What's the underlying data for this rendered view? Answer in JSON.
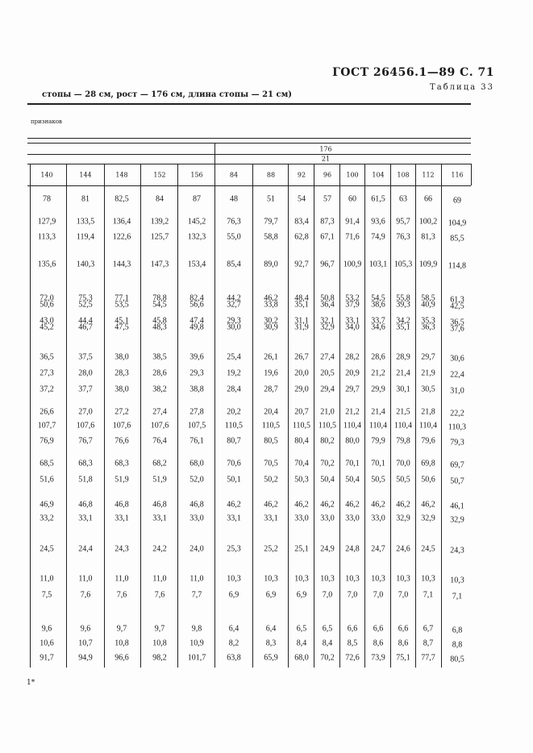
{
  "header": {
    "standard": "ГОСТ 26456.1—89 С. 71",
    "table_label": "Таблица 33"
  },
  "subtitle": "стопы — 28 см, рост — 176 см, длина стопы — 21 см)",
  "feature_label": "признаков",
  "group_header": {
    "height": "176",
    "foot_length": "21"
  },
  "columns": [
    "140",
    "144",
    "148",
    "152",
    "156",
    "84",
    "88",
    "92",
    "96",
    "100",
    "104",
    "108",
    "112",
    "116"
  ],
  "rows": [
    [
      "78",
      "81",
      "82,5",
      "84",
      "87",
      "48",
      "51",
      "54",
      "57",
      "60",
      "61,5",
      "63",
      "66",
      "69"
    ],
    [
      "127,9",
      "133,5",
      "136,4",
      "139,2",
      "145,2",
      "76,3",
      "79,7",
      "83,4",
      "87,3",
      "91,4",
      "93,6",
      "95,7",
      "100,2",
      "104,9"
    ],
    [
      "113,3",
      "119,4",
      "122,6",
      "125,7",
      "132,3",
      "55,0",
      "58,8",
      "62,8",
      "67,1",
      "71,6",
      "74,9",
      "76,3",
      "81,3",
      "85,5"
    ],
    [
      "135,6",
      "140,3",
      "144,3",
      "147,3",
      "153,4",
      "85,4",
      "89,0",
      "92,7",
      "96,7",
      "100,9",
      "103,1",
      "105,3",
      "109,9",
      "114,8"
    ],
    [
      "72,0",
      "75,3",
      "77,1",
      "78,8",
      "82,4",
      "44,2",
      "46,2",
      "48,4",
      "50,8",
      "53,2",
      "54,5",
      "55,8",
      "58,5",
      "61,3"
    ],
    [
      "50,6",
      "52,5",
      "53,5",
      "54,5",
      "56,6",
      "32,7",
      "33,8",
      "35,1",
      "36,4",
      "37,9",
      "38,6",
      "39,3",
      "40,9",
      "42,5"
    ],
    [
      "43,0",
      "44,4",
      "45,1",
      "45,8",
      "47,4",
      "29,3",
      "30,2",
      "31,1",
      "32,1",
      "33,1",
      "33,7",
      "34,2",
      "35,3",
      "36,5"
    ],
    [
      "45,2",
      "46,7",
      "47,5",
      "48,3",
      "49,8",
      "30,0",
      "30,9",
      "31,9",
      "32,9",
      "34,0",
      "34,6",
      "35,1",
      "36,3",
      "37,6"
    ],
    [
      "36,5",
      "37,5",
      "38,0",
      "38,5",
      "39,6",
      "25,4",
      "26,1",
      "26,7",
      "27,4",
      "28,2",
      "28,6",
      "28,9",
      "29,7",
      "30,6"
    ],
    [
      "27,3",
      "28,0",
      "28,3",
      "28,6",
      "29,3",
      "19,2",
      "19,6",
      "20,0",
      "20,5",
      "20,9",
      "21,2",
      "21,4",
      "21,9",
      "22,4"
    ],
    [
      "37,2",
      "37,7",
      "38,0",
      "38,2",
      "38,8",
      "28,4",
      "28,7",
      "29,0",
      "29,4",
      "29,7",
      "29,9",
      "30,1",
      "30,5",
      "31,0"
    ],
    [
      "26,6",
      "27,0",
      "27,2",
      "27,4",
      "27,8",
      "20,2",
      "20,4",
      "20,7",
      "21,0",
      "21,2",
      "21,4",
      "21,5",
      "21,8",
      "22,2"
    ],
    [
      "107,7",
      "107,6",
      "107,6",
      "107,6",
      "107,5",
      "110,5",
      "110,5",
      "110,5",
      "110,5",
      "110,4",
      "110,4",
      "110,4",
      "110,4",
      "110,3"
    ],
    [
      "76,9",
      "76,7",
      "76,6",
      "76,4",
      "76,1",
      "80,7",
      "80,5",
      "80,4",
      "80,2",
      "80,0",
      "79,9",
      "79,8",
      "79,6",
      "79,3"
    ],
    [
      "68,5",
      "68,3",
      "68,3",
      "68,2",
      "68,0",
      "70,6",
      "70,5",
      "70,4",
      "70,2",
      "70,1",
      "70,1",
      "70,0",
      "69,8",
      "69,7"
    ],
    [
      "51,6",
      "51,8",
      "51,9",
      "51,9",
      "52,0",
      "50,1",
      "50,2",
      "50,3",
      "50,4",
      "50,4",
      "50,5",
      "50,5",
      "50,6",
      "50,7"
    ],
    [
      "46,9",
      "46,8",
      "46,8",
      "46,8",
      "46,8",
      "46,2",
      "46,2",
      "46,2",
      "46,2",
      "46,2",
      "46,2",
      "46,2",
      "46,2",
      "46,1"
    ],
    [
      "33,2",
      "33,1",
      "33,1",
      "33,1",
      "33,0",
      "33,1",
      "33,1",
      "33,0",
      "33,0",
      "33,0",
      "33,0",
      "32,9",
      "32,9",
      "32,9"
    ],
    [
      "24,5",
      "24,4",
      "24,3",
      "24,2",
      "24,0",
      "25,3",
      "25,2",
      "25,1",
      "24,9",
      "24,8",
      "24,7",
      "24,6",
      "24,5",
      "24,3"
    ],
    [
      "11,0",
      "11,0",
      "11,0",
      "11,0",
      "11,0",
      "10,3",
      "10,3",
      "10,3",
      "10,3",
      "10,3",
      "10,3",
      "10,3",
      "10,3",
      "10,3"
    ],
    [
      "7,5",
      "7,6",
      "7,6",
      "7,6",
      "7,7",
      "6,9",
      "6,9",
      "6,9",
      "7,0",
      "7,0",
      "7,0",
      "7,0",
      "7,1",
      "7,1"
    ],
    [
      "9,6",
      "9,6",
      "9,7",
      "9,7",
      "9,8",
      "6,4",
      "6,4",
      "6,5",
      "6,5",
      "6,6",
      "6,6",
      "6,6",
      "6,7",
      "6,8"
    ],
    [
      "10,6",
      "10,7",
      "10,8",
      "10,8",
      "10,9",
      "8,2",
      "8,3",
      "8,4",
      "8,4",
      "8,5",
      "8,6",
      "8,6",
      "8,7",
      "8,8"
    ],
    [
      "91,7",
      "94,9",
      "96,6",
      "98,2",
      "101,7",
      "63,8",
      "65,9",
      "68,0",
      "70,2",
      "72,6",
      "73,9",
      "75,1",
      "77,7",
      "80,5"
    ]
  ],
  "footnote": "1*"
}
